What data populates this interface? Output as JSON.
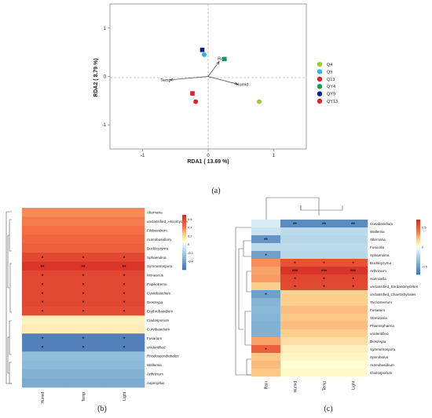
{
  "chart_data": [
    {
      "type": "scatter",
      "panel_label": "(a)",
      "xlabel": "RDA1 ( 13.69 %)",
      "ylabel": "RDA2 ( 8.79 %)",
      "xlim": [
        -1.5,
        1.5
      ],
      "ylim": [
        -1.5,
        1.5
      ],
      "xticks": [
        -1,
        0,
        1
      ],
      "yticks": [
        -1,
        0,
        1
      ],
      "points": [
        {
          "name": "Q4",
          "x": 0.78,
          "y": -0.52,
          "color": "#9acd32",
          "shape": "circle"
        },
        {
          "name": "Q9",
          "x": -0.06,
          "y": 0.45,
          "color": "#29b6e6",
          "shape": "circle"
        },
        {
          "name": "Q13",
          "x": -0.19,
          "y": -0.52,
          "color": "#e0202a",
          "shape": "circle"
        },
        {
          "name": "QY4",
          "x": 0.25,
          "y": 0.36,
          "color": "#0f9d58",
          "shape": "square"
        },
        {
          "name": "QY9",
          "x": -0.09,
          "y": 0.55,
          "color": "#0a1f8f",
          "shape": "square"
        },
        {
          "name": "QY13",
          "x": -0.24,
          "y": -0.35,
          "color": "#e0202a",
          "shape": "square"
        }
      ],
      "arrows": [
        {
          "name": "Rain",
          "x": 0.17,
          "y": 0.31
        },
        {
          "name": "Humid",
          "x": 0.45,
          "y": -0.16
        },
        {
          "name": "Temp",
          "x": -0.58,
          "y": -0.07
        }
      ],
      "legend": [
        "Q4",
        "Q9",
        "Q13",
        "QY4",
        "QY9",
        "QY13"
      ]
    },
    {
      "type": "heatmap",
      "panel_label": "(b)",
      "columns": [
        "Humid",
        "Temp",
        "Light"
      ],
      "rows": [
        "Alternaria",
        "unclassified_Ascomycota",
        "Filobasidium",
        "Aureobasidium",
        "Buckleyzyma",
        "Sphaerulina",
        "Symmetrospora",
        "Monascus",
        "Papiliotrema",
        "Cystobasidium",
        "Dioszegia",
        "Erythrobasidium",
        "Cladosporium",
        "Curvibasidium",
        "Fusarium",
        "unidentified",
        "Rhodosporidiobolus",
        "Wallemia",
        "Arthrinium",
        "Aspergillus"
      ],
      "values": [
        [
          0.38,
          0.38,
          0.38
        ],
        [
          0.41,
          0.41,
          0.41
        ],
        [
          0.44,
          0.44,
          0.44
        ],
        [
          0.47,
          0.47,
          0.47
        ],
        [
          0.5,
          0.5,
          0.5
        ],
        [
          0.6,
          0.6,
          0.6
        ],
        [
          0.68,
          0.68,
          0.68
        ],
        [
          0.6,
          0.6,
          0.6
        ],
        [
          0.6,
          0.6,
          0.6
        ],
        [
          0.6,
          0.6,
          0.6
        ],
        [
          0.6,
          0.6,
          0.6
        ],
        [
          0.58,
          0.58,
          0.58
        ],
        [
          0.12,
          0.12,
          0.12
        ],
        [
          0.14,
          0.14,
          0.14
        ],
        [
          -0.55,
          -0.55,
          -0.55
        ],
        [
          -0.55,
          -0.55,
          -0.55
        ],
        [
          -0.28,
          -0.28,
          -0.28
        ],
        [
          -0.3,
          -0.3,
          -0.3
        ],
        [
          -0.33,
          -0.33,
          -0.33
        ],
        [
          -0.36,
          -0.36,
          -0.36
        ]
      ],
      "stars": [
        [
          "",
          "",
          ""
        ],
        [
          "",
          "",
          ""
        ],
        [
          "",
          "",
          ""
        ],
        [
          "",
          "",
          ""
        ],
        [
          "",
          "",
          ""
        ],
        [
          "*",
          "*",
          "*"
        ],
        [
          "**",
          "**",
          "**"
        ],
        [
          "*",
          "*",
          "*"
        ],
        [
          "*",
          "*",
          "*"
        ],
        [
          "*",
          "*",
          "*"
        ],
        [
          "*",
          "*",
          "*"
        ],
        [
          "*",
          "*",
          "*"
        ],
        [
          "",
          "",
          ""
        ],
        [
          "",
          "",
          ""
        ],
        [
          "*",
          "*",
          "*"
        ],
        [
          "*",
          "*",
          "*"
        ],
        [
          "",
          "",
          ""
        ],
        [
          "",
          "",
          ""
        ],
        [
          "",
          "",
          ""
        ],
        [
          "",
          "",
          ""
        ]
      ],
      "colorbar_ticks": [
        0.6,
        0.4,
        0.2,
        0,
        -0.2,
        -0.4
      ],
      "colorbar_range": [
        -0.6,
        0.7
      ]
    },
    {
      "type": "heatmap",
      "panel_label": "(c)",
      "columns": [
        "Rain",
        "Humid",
        "Temp",
        "Light"
      ],
      "rows": [
        "Curvibasidium",
        "Wallemia",
        "Alternaria",
        "Fusicolla",
        "Sphaerulina",
        "Buckleyzyma",
        "Arthrinium",
        "Hannaella",
        "unclassified_Sordariomycetes",
        "unclassified_Chaetothyriales",
        "Trichomerium",
        "Fusarium",
        "Stretizania",
        "Phaeosphaeria",
        "unidentified",
        "Dioszegia",
        "Symmetrospora",
        "Sporobolus",
        "Aureobasidium",
        "Cladosporium"
      ],
      "values": [
        [
          -0.1,
          -0.6,
          -0.6,
          -0.6
        ],
        [
          -0.15,
          -0.2,
          -0.2,
          -0.2
        ],
        [
          -0.55,
          -0.22,
          -0.22,
          -0.22
        ],
        [
          -0.2,
          -0.2,
          -0.2,
          -0.2
        ],
        [
          -0.5,
          -0.22,
          -0.22,
          -0.22
        ],
        [
          0.35,
          0.55,
          0.55,
          0.55
        ],
        [
          0.3,
          0.68,
          0.68,
          0.68
        ],
        [
          0.32,
          0.6,
          0.6,
          0.6
        ],
        [
          0.2,
          0.58,
          0.58,
          0.58
        ],
        [
          -0.5,
          0.2,
          0.2,
          0.2
        ],
        [
          -0.4,
          0.2,
          0.2,
          0.2
        ],
        [
          -0.38,
          0.24,
          0.24,
          0.24
        ],
        [
          -0.4,
          0.22,
          0.22,
          0.22
        ],
        [
          -0.42,
          0.24,
          0.24,
          0.24
        ],
        [
          -0.42,
          0.2,
          0.2,
          0.2
        ],
        [
          0.3,
          0.14,
          0.14,
          0.14
        ],
        [
          0.48,
          0.08,
          0.08,
          0.08
        ],
        [
          0.22,
          0.06,
          0.06,
          0.06
        ],
        [
          0.25,
          0.02,
          0.02,
          0.02
        ],
        [
          0.22,
          0.04,
          0.04,
          0.04
        ]
      ],
      "stars": [
        [
          "",
          "**",
          "**",
          "**"
        ],
        [
          "",
          "",
          "",
          ""
        ],
        [
          "**",
          "",
          "",
          ""
        ],
        [
          "",
          "",
          "",
          ""
        ],
        [
          "*",
          "",
          "",
          ""
        ],
        [
          "",
          "*",
          "*",
          "*"
        ],
        [
          "",
          "***",
          "***",
          "***"
        ],
        [
          "",
          "*",
          "*",
          "*"
        ],
        [
          "",
          "*",
          "*",
          "*"
        ],
        [
          "*",
          "",
          "",
          ""
        ],
        [
          "",
          "",
          "",
          ""
        ],
        [
          "",
          "",
          "",
          ""
        ],
        [
          "",
          "",
          "",
          ""
        ],
        [
          "",
          "",
          "",
          ""
        ],
        [
          "",
          "",
          "",
          ""
        ],
        [
          "",
          "",
          "",
          ""
        ],
        [
          "*",
          "",
          "",
          ""
        ],
        [
          "",
          "",
          "",
          ""
        ],
        [
          "",
          "",
          "",
          ""
        ],
        [
          "",
          "",
          "",
          ""
        ]
      ],
      "colorbar_ticks": [
        0.5,
        0,
        -0.5
      ],
      "colorbar_range": [
        -0.7,
        0.7
      ]
    }
  ]
}
